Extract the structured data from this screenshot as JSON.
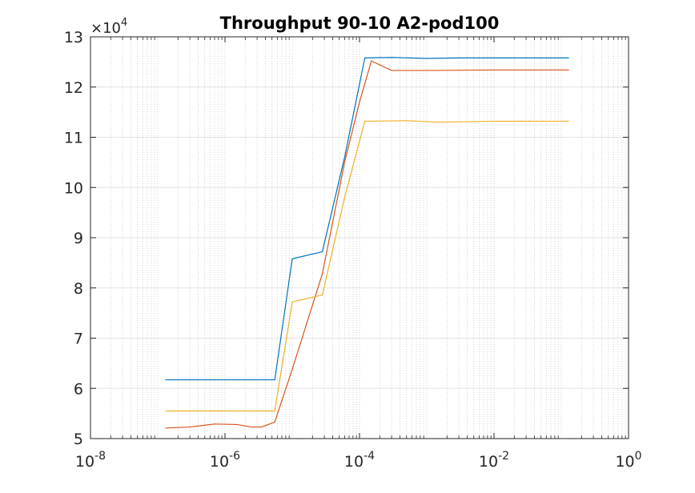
{
  "chart_data": {
    "type": "line",
    "title": "Throughput 90-10 A2-pod100",
    "xlabel": "",
    "ylabel": "",
    "x_scale": "log",
    "xlim": [
      1e-08,
      1
    ],
    "ylim": [
      50000,
      130000
    ],
    "grid": true,
    "y_multiplier": {
      "prefix": "×10",
      "exponent": "4"
    },
    "x_ticks": [
      {
        "base": "10",
        "exp": "-8",
        "value": 1e-08
      },
      {
        "base": "10",
        "exp": "-6",
        "value": 1e-06
      },
      {
        "base": "10",
        "exp": "-4",
        "value": 0.0001
      },
      {
        "base": "10",
        "exp": "-2",
        "value": 0.01
      },
      {
        "base": "10",
        "exp": "0",
        "value": 1
      }
    ],
    "y_ticks": [
      {
        "label": "5",
        "value": 50000
      },
      {
        "label": "6",
        "value": 60000
      },
      {
        "label": "7",
        "value": 70000
      },
      {
        "label": "8",
        "value": 80000
      },
      {
        "label": "9",
        "value": 90000
      },
      {
        "label": "10",
        "value": 100000
      },
      {
        "label": "11",
        "value": 110000
      },
      {
        "label": "12",
        "value": 120000
      },
      {
        "label": "13",
        "value": 130000
      }
    ],
    "series": [
      {
        "color": "#0072BD",
        "points": [
          [
            1.3e-07,
            61700
          ],
          [
            5e-06,
            61700
          ],
          [
            5.5e-06,
            61700
          ],
          [
            1e-05,
            85800
          ],
          [
            2.8e-05,
            87200
          ],
          [
            6e-05,
            106000
          ],
          [
            0.00012,
            125800
          ],
          [
            0.0003,
            125900
          ],
          [
            0.001,
            125700
          ],
          [
            0.003,
            125800
          ],
          [
            0.01,
            125800
          ],
          [
            0.13,
            125800
          ]
        ]
      },
      {
        "color": "#D95319",
        "points": [
          [
            1.3e-07,
            52100
          ],
          [
            3e-07,
            52300
          ],
          [
            7e-07,
            52900
          ],
          [
            1.5e-06,
            52800
          ],
          [
            2.5e-06,
            52300
          ],
          [
            3.5e-06,
            52300
          ],
          [
            5.5e-06,
            53300
          ],
          [
            1e-05,
            63800
          ],
          [
            2.8e-05,
            82800
          ],
          [
            6e-05,
            105000
          ],
          [
            0.0001,
            117000
          ],
          [
            0.00015,
            125200
          ],
          [
            0.0003,
            123300
          ],
          [
            0.001,
            123300
          ],
          [
            0.01,
            123400
          ],
          [
            0.13,
            123400
          ]
        ]
      },
      {
        "color": "#EDB120",
        "points": [
          [
            1.3e-07,
            55500
          ],
          [
            5.5e-06,
            55500
          ],
          [
            1e-05,
            77200
          ],
          [
            2.8e-05,
            78600
          ],
          [
            6e-05,
            98000
          ],
          [
            0.00012,
            113200
          ],
          [
            0.0005,
            113300
          ],
          [
            0.0015,
            113000
          ],
          [
            0.01,
            113200
          ],
          [
            0.13,
            113200
          ]
        ]
      }
    ]
  }
}
